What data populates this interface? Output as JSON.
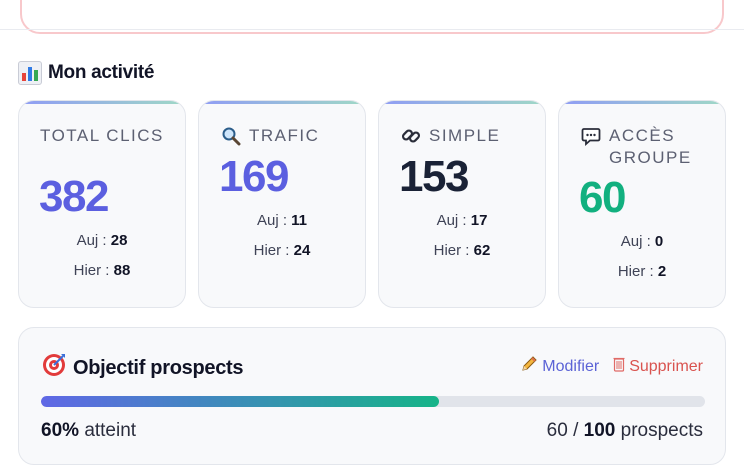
{
  "section": {
    "title": "Mon activité"
  },
  "stats": [
    {
      "label": "Total clics",
      "value": "382",
      "today_label": "Auj :",
      "today": "28",
      "yesterday_label": "Hier :",
      "yesterday": "88",
      "color": "#5b5fe0",
      "icon": ""
    },
    {
      "label": "Trafic",
      "value": "169",
      "today_label": "Auj :",
      "today": "11",
      "yesterday_label": "Hier :",
      "yesterday": "24",
      "color": "#5b5fe0",
      "icon": "magnifier-icon"
    },
    {
      "label": "Simple",
      "value": "153",
      "today_label": "Auj :",
      "today": "17",
      "yesterday_label": "Hier :",
      "yesterday": "62",
      "color": "#1a2236",
      "icon": "link-icon"
    },
    {
      "label": "Accès groupe",
      "value": "60",
      "today_label": "Auj :",
      "today": "0",
      "yesterday_label": "Hier :",
      "yesterday": "2",
      "color": "#12b07f",
      "icon": "speech-bubble-icon"
    }
  ],
  "objectif": {
    "title": "Objectif prospects",
    "edit_label": "Modifier",
    "delete_label": "Supprimer",
    "progress_pct": 60,
    "percent_text": "60%",
    "reached_label": "atteint",
    "current": "60",
    "separator": "/",
    "target": "100",
    "unit_label": "prospects"
  }
}
